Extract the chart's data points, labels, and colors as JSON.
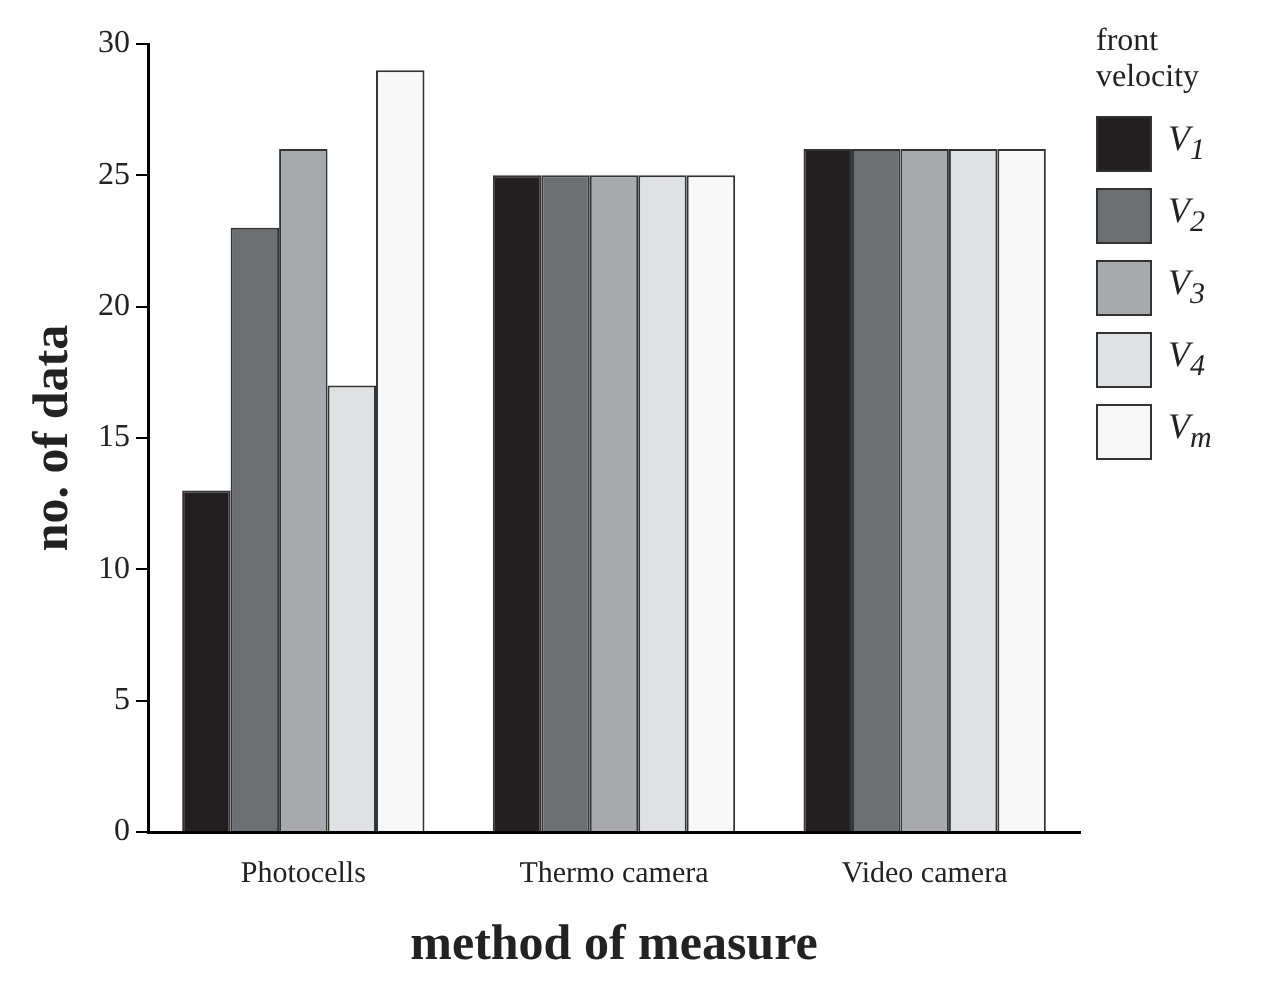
{
  "chart_data": {
    "type": "bar",
    "xlabel": "method of measure",
    "ylabel": "no. of data",
    "legend_title": "front velocity",
    "categories": [
      "Photocells",
      "Thermo camera",
      "Video camera"
    ],
    "series": [
      {
        "name": "V$_{1}$",
        "color": "#231f20",
        "values": [
          13,
          25,
          26
        ]
      },
      {
        "name": "V$_{2}$",
        "color": "#6d6e71",
        "values": [
          23,
          25,
          26
        ]
      },
      {
        "name": "V$_{3}$",
        "color": "#a7a9ac",
        "values": [
          26,
          25,
          26
        ]
      },
      {
        "name": "V$_{4}$",
        "color": "#e0e1e3",
        "values": [
          17,
          25,
          26
        ]
      },
      {
        "name": "V$_{m}$",
        "color": "#f8f8f8",
        "values": [
          29,
          25,
          26
        ]
      }
    ],
    "ylim": [
      0,
      30
    ],
    "yticks": [
      0,
      5,
      10,
      15,
      20,
      25,
      30
    ],
    "grid": false,
    "legend": "top right"
  }
}
